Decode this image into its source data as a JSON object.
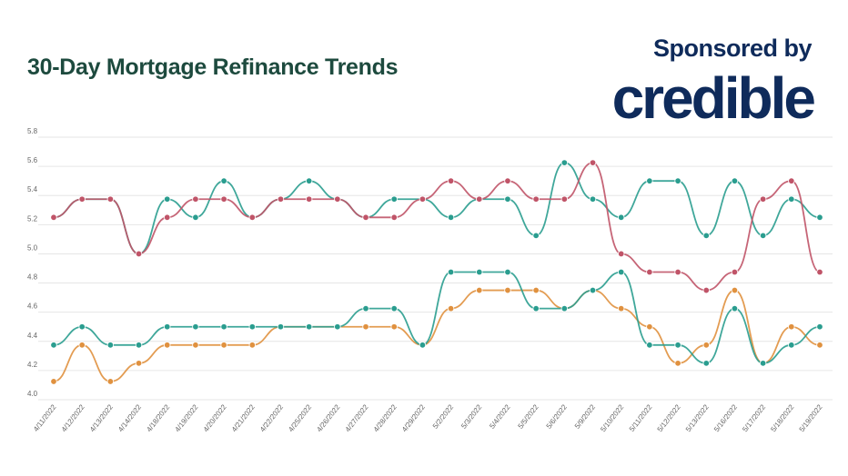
{
  "header": {
    "title": "30-Day Mortgage Refinance Trends",
    "sponsor_text": "Sponsored by",
    "logo_text": "credible"
  },
  "chart_data": {
    "type": "line",
    "title": "30-Day Mortgage Refinance Trends",
    "xlabel": "",
    "ylabel": "",
    "ylim": [
      4.0,
      5.8
    ],
    "yticks": [
      "4.0",
      "4.2",
      "4.4",
      "4.6",
      "4.8",
      "5.0",
      "5.2",
      "5.4",
      "5.6",
      "5.8"
    ],
    "grid": true,
    "legend": "none",
    "categories": [
      "4/11/2022",
      "4/12/2022",
      "4/13/2022",
      "4/14/2022",
      "4/18/2022",
      "4/19/2022",
      "4/20/2022",
      "4/21/2022",
      "4/22/2022",
      "4/25/2022",
      "4/26/2022",
      "4/27/2022",
      "4/28/2022",
      "4/29/2022",
      "5/2/2022",
      "5/3/2022",
      "5/4/2022",
      "5/5/2022",
      "5/6/2022",
      "5/9/2022",
      "5/10/2022",
      "5/11/2022",
      "5/12/2022",
      "5/13/2022",
      "5/16/2022",
      "5/17/2022",
      "5/18/2022",
      "5/19/2022"
    ],
    "series": [
      {
        "color": "#2a9d8f",
        "values": [
          5.25,
          5.375,
          5.375,
          5.0,
          5.375,
          5.25,
          5.5,
          5.25,
          5.375,
          5.5,
          5.375,
          5.25,
          5.375,
          5.375,
          5.25,
          5.375,
          5.375,
          5.125,
          5.625,
          5.375,
          5.25,
          5.5,
          5.5,
          5.125,
          5.5,
          5.125,
          5.375,
          5.25
        ]
      },
      {
        "color": "#c05468",
        "values": [
          5.25,
          5.375,
          5.375,
          5.0,
          5.25,
          5.375,
          5.375,
          5.25,
          5.375,
          5.375,
          5.375,
          5.25,
          5.25,
          5.375,
          5.5,
          5.375,
          5.5,
          5.375,
          5.375,
          5.625,
          5.0,
          4.875,
          4.875,
          4.75,
          4.875,
          5.375,
          5.5,
          4.875
        ]
      },
      {
        "color": "#e0913f",
        "values": [
          4.125,
          4.375,
          4.125,
          4.25,
          4.375,
          4.375,
          4.375,
          4.375,
          4.5,
          4.5,
          4.5,
          4.5,
          4.5,
          4.375,
          4.625,
          4.75,
          4.75,
          4.75,
          4.625,
          4.75,
          4.625,
          4.5,
          4.25,
          4.375,
          4.75,
          4.25,
          4.5,
          4.375
        ]
      },
      {
        "color": "#2a9d8f",
        "values": [
          4.375,
          4.5,
          4.375,
          4.375,
          4.5,
          4.5,
          4.5,
          4.5,
          4.5,
          4.5,
          4.5,
          4.625,
          4.625,
          4.375,
          4.875,
          4.875,
          4.875,
          4.625,
          4.625,
          4.75,
          4.875,
          4.375,
          4.375,
          4.25,
          4.625,
          4.25,
          4.375,
          4.5
        ]
      }
    ]
  }
}
